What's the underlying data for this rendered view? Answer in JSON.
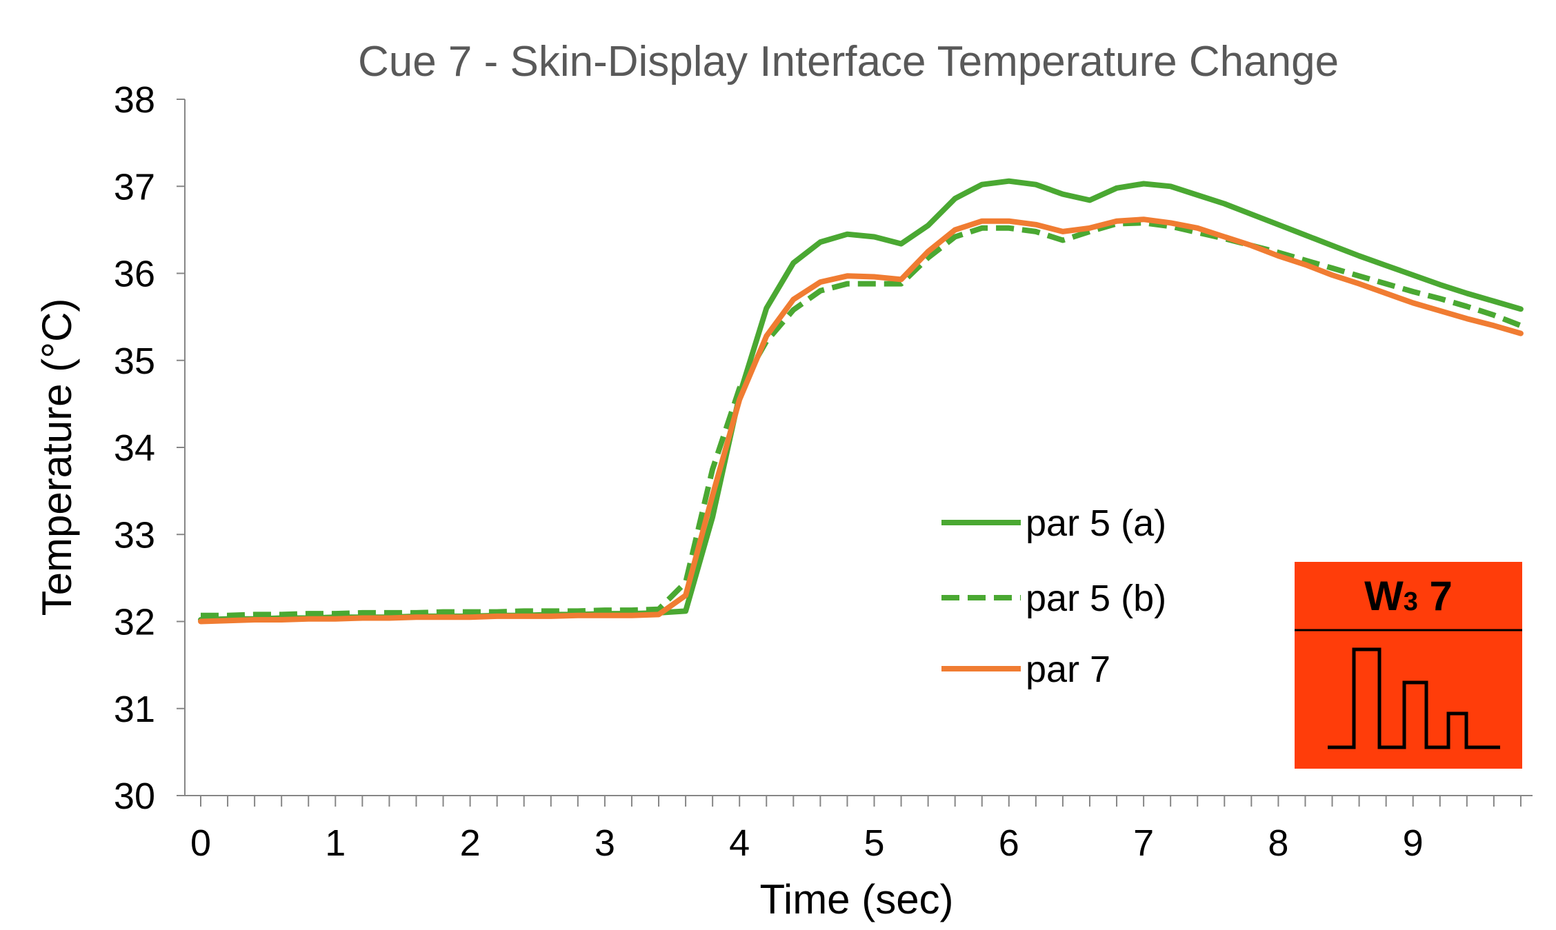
{
  "chart_data": {
    "type": "line",
    "title": "Cue 7 - Skin-Display Interface Temperature Change",
    "xlabel": "Time (sec)",
    "ylabel": "Temperature (°C)",
    "xlim": [
      -0.1,
      9.8
    ],
    "ylim": [
      30,
      38
    ],
    "xticks": [
      0,
      1,
      2,
      3,
      4,
      5,
      6,
      7,
      8,
      9
    ],
    "yticks": [
      30,
      31,
      32,
      33,
      34,
      35,
      36,
      37,
      38
    ],
    "x": [
      0,
      0.2,
      0.4,
      0.6,
      0.8,
      1.0,
      1.2,
      1.4,
      1.6,
      1.8,
      2.0,
      2.2,
      2.4,
      2.6,
      2.8,
      3.0,
      3.2,
      3.4,
      3.6,
      3.8,
      4.0,
      4.2,
      4.4,
      4.6,
      4.8,
      5.0,
      5.2,
      5.4,
      5.6,
      5.8,
      6.0,
      6.2,
      6.4,
      6.6,
      6.8,
      7.0,
      7.2,
      7.4,
      7.6,
      7.8,
      8.0,
      8.2,
      8.4,
      8.6,
      8.8,
      9.0,
      9.2,
      9.4,
      9.6,
      9.8
    ],
    "series": [
      {
        "name": "par 5 (a)",
        "color": "#4aa832",
        "style": "solid",
        "values": [
          32.02,
          32.03,
          32.03,
          32.04,
          32.04,
          32.05,
          32.05,
          32.05,
          32.06,
          32.06,
          32.06,
          32.07,
          32.07,
          32.08,
          32.08,
          32.09,
          32.09,
          32.1,
          32.12,
          33.2,
          34.6,
          35.6,
          36.12,
          36.36,
          36.45,
          36.42,
          36.34,
          36.55,
          36.86,
          37.02,
          37.06,
          37.02,
          36.91,
          36.84,
          36.98,
          37.03,
          37.0,
          36.9,
          36.8,
          36.68,
          36.56,
          36.44,
          36.32,
          36.2,
          36.09,
          35.98,
          35.87,
          35.77,
          35.68,
          35.59
        ]
      },
      {
        "name": "par 5 (b)",
        "color": "#4aa832",
        "style": "dashed",
        "values": [
          32.07,
          32.07,
          32.08,
          32.08,
          32.09,
          32.09,
          32.1,
          32.1,
          32.1,
          32.11,
          32.11,
          32.11,
          32.12,
          32.12,
          32.12,
          32.13,
          32.13,
          32.14,
          32.45,
          33.75,
          34.68,
          35.22,
          35.58,
          35.8,
          35.88,
          35.88,
          35.88,
          36.18,
          36.42,
          36.52,
          36.52,
          36.48,
          36.38,
          36.48,
          36.57,
          36.58,
          36.54,
          36.47,
          36.4,
          36.32,
          36.24,
          36.15,
          36.06,
          35.97,
          35.88,
          35.79,
          35.71,
          35.62,
          35.52,
          35.4
        ]
      },
      {
        "name": "par 7",
        "color": "#f07c32",
        "style": "solid",
        "values": [
          32.0,
          32.01,
          32.02,
          32.02,
          32.03,
          32.03,
          32.04,
          32.04,
          32.05,
          32.05,
          32.05,
          32.06,
          32.06,
          32.06,
          32.07,
          32.07,
          32.07,
          32.08,
          32.3,
          33.45,
          34.55,
          35.28,
          35.7,
          35.9,
          35.97,
          35.96,
          35.93,
          36.25,
          36.5,
          36.6,
          36.6,
          36.56,
          36.48,
          36.52,
          36.6,
          36.62,
          36.58,
          36.52,
          36.42,
          36.32,
          36.2,
          36.1,
          35.98,
          35.88,
          35.77,
          35.66,
          35.57,
          35.48,
          35.4,
          35.31
        ]
      }
    ],
    "legend_position": "right"
  },
  "inset": {
    "heading": "W3 7",
    "heading_main": "W",
    "heading_sub": "3",
    "heading_num": "7",
    "background": "#ff3d0a"
  }
}
